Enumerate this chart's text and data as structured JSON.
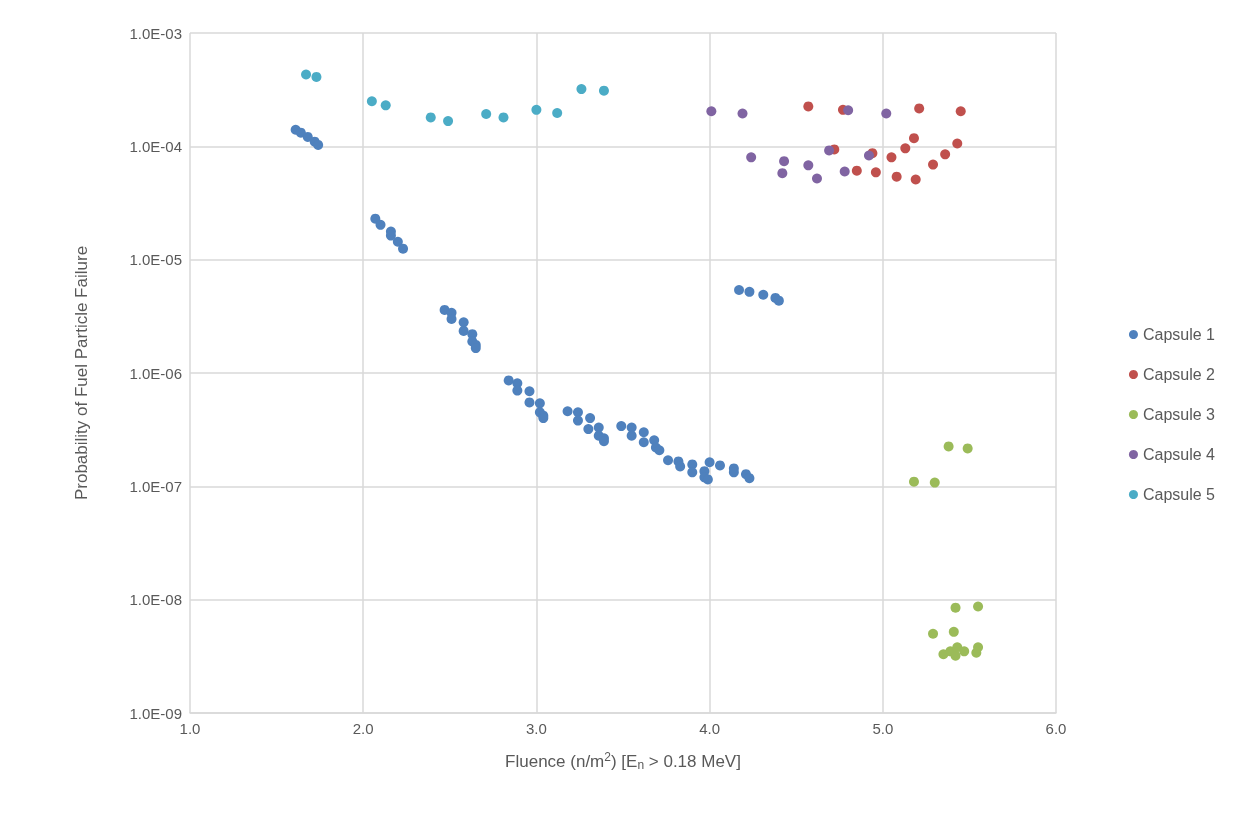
{
  "chart_data": {
    "type": "scatter",
    "xlabel": "Fluence (n/m$^{2}$) [E$_{n}$ > 0.18 MeV]",
    "ylabel": "Probability of Fuel Particle Failure",
    "log": "y",
    "grid": true,
    "legend": "right",
    "marker": "circle",
    "xlim": [
      1,
      6
    ],
    "xticks": [
      {
        "value": 1,
        "label": "1.0"
      },
      {
        "value": 2,
        "label": "2.0"
      },
      {
        "value": 3,
        "label": "3.0"
      },
      {
        "value": 4,
        "label": "4.0"
      },
      {
        "value": 5,
        "label": "5.0"
      },
      {
        "value": 6,
        "label": "6.0"
      }
    ],
    "ylim": [
      1e-09,
      0.001
    ],
    "yticks": [
      {
        "value": 1e-09,
        "label": "1.0E-09"
      },
      {
        "value": 1e-08,
        "label": "1.0E-08"
      },
      {
        "value": 1e-07,
        "label": "1.0E-07"
      },
      {
        "value": 1e-06,
        "label": "1.0E-06"
      },
      {
        "value": 1e-05,
        "label": "1.0E-05"
      },
      {
        "value": 0.0001,
        "label": "1.0E-04"
      },
      {
        "value": 0.001,
        "label": "1.0E-03"
      }
    ],
    "series": [
      {
        "name": "Capsule 1",
        "color": "#4f81bd",
        "x": [
          1.61,
          1.64,
          1.68,
          1.72,
          1.74,
          2.07,
          2.1,
          2.16,
          2.16,
          2.2,
          2.23,
          2.47,
          2.51,
          2.51,
          2.58,
          2.58,
          2.63,
          2.63,
          2.65,
          2.65,
          2.84,
          2.89,
          2.89,
          2.96,
          2.96,
          3.02,
          3.02,
          3.04,
          3.04,
          3.18,
          3.24,
          3.24,
          3.31,
          3.3,
          3.36,
          3.36,
          3.39,
          3.39,
          3.49,
          3.55,
          3.55,
          3.62,
          3.62,
          3.68,
          3.69,
          3.71,
          3.76,
          3.82,
          3.83,
          3.9,
          3.9,
          3.97,
          3.97,
          3.99,
          4.0,
          4.06,
          4.14,
          4.14,
          4.21,
          4.23,
          4.17,
          4.23,
          4.31,
          4.38,
          4.4
        ],
        "values": [
          0.00014,
          0.000132,
          0.000121,
          0.00011,
          0.000103,
          2.3e-05,
          2.03e-05,
          1.77e-05,
          1.63e-05,
          1.44e-05,
          1.25e-05,
          3.6e-06,
          3.4e-06,
          3e-06,
          2.8e-06,
          2.35e-06,
          2.2e-06,
          1.9e-06,
          1.77e-06,
          1.66e-06,
          8.6e-07,
          8.1e-07,
          7e-07,
          6.9e-07,
          5.5e-07,
          5.4e-07,
          4.5e-07,
          4.2e-07,
          4e-07,
          4.6e-07,
          4.5e-07,
          3.8e-07,
          4e-07,
          3.2e-07,
          3.3e-07,
          2.8e-07,
          2.65e-07,
          2.5e-07,
          3.4e-07,
          3.3e-07,
          2.8e-07,
          3e-07,
          2.45e-07,
          2.55e-07,
          2.2e-07,
          2.08e-07,
          1.7e-07,
          1.66e-07,
          1.5e-07,
          1.56e-07,
          1.33e-07,
          1.36e-07,
          1.2e-07,
          1.15e-07,
          1.63e-07,
          1.53e-07,
          1.44e-07,
          1.33e-07,
          1.28e-07,
          1.18e-07,
          5.4e-06,
          5.2e-06,
          4.9e-06,
          4.6e-06,
          4.35e-06
        ]
      },
      {
        "name": "Capsule 2",
        "color": "#c0504d",
        "x": [
          4.57,
          4.77,
          5.21,
          5.45,
          4.72,
          4.94,
          5.05,
          5.13,
          5.18,
          5.43,
          5.36,
          5.29,
          4.85,
          4.96,
          5.08,
          5.19
        ],
        "values": [
          0.000225,
          0.00021,
          0.000216,
          0.000204,
          9.4e-05,
          8.7e-05,
          8e-05,
          9.6e-05,
          0.000118,
          0.000106,
          8.5e-05,
          6.9e-05,
          6.1e-05,
          5.9e-05,
          5.4e-05,
          5.1e-05
        ]
      },
      {
        "name": "Capsule 3",
        "color": "#9bbb59",
        "x": [
          5.38,
          5.49,
          5.18,
          5.3,
          5.42,
          5.55,
          5.29,
          5.41,
          5.35,
          5.39,
          5.42,
          5.43,
          5.47,
          5.52,
          5.54,
          5.55
        ],
        "values": [
          2.25e-07,
          2.16e-07,
          1.1e-07,
          1.08e-07,
          8.5e-09,
          8.7e-09,
          5e-09,
          5.2e-09,
          3.3e-09,
          3.5e-09,
          3.2e-09,
          3.8e-09,
          3.5e-09,
          null,
          3.4e-09,
          3.8e-09
        ]
      },
      {
        "name": "Capsule 4",
        "color": "#8064a2",
        "x": [
          4.01,
          4.19,
          4.8,
          5.02,
          4.24,
          4.43,
          4.57,
          4.42,
          4.62,
          4.69,
          4.78,
          4.92
        ],
        "values": [
          0.000204,
          0.000195,
          0.000208,
          0.000195,
          8e-05,
          7.4e-05,
          6.8e-05,
          5.8e-05,
          5.2e-05,
          9.2e-05,
          6e-05,
          8.3e-05
        ]
      },
      {
        "name": "Capsule 5",
        "color": "#4bacc6",
        "x": [
          1.67,
          1.73,
          2.05,
          2.13,
          2.39,
          2.49,
          2.71,
          2.81,
          3.0,
          3.12,
          3.26,
          3.39
        ],
        "values": [
          0.00043,
          0.00041,
          0.00025,
          0.00023,
          0.00018,
          0.000167,
          0.000193,
          0.00018,
          0.00021,
          0.000197,
          0.00032,
          0.00031
        ]
      }
    ]
  }
}
